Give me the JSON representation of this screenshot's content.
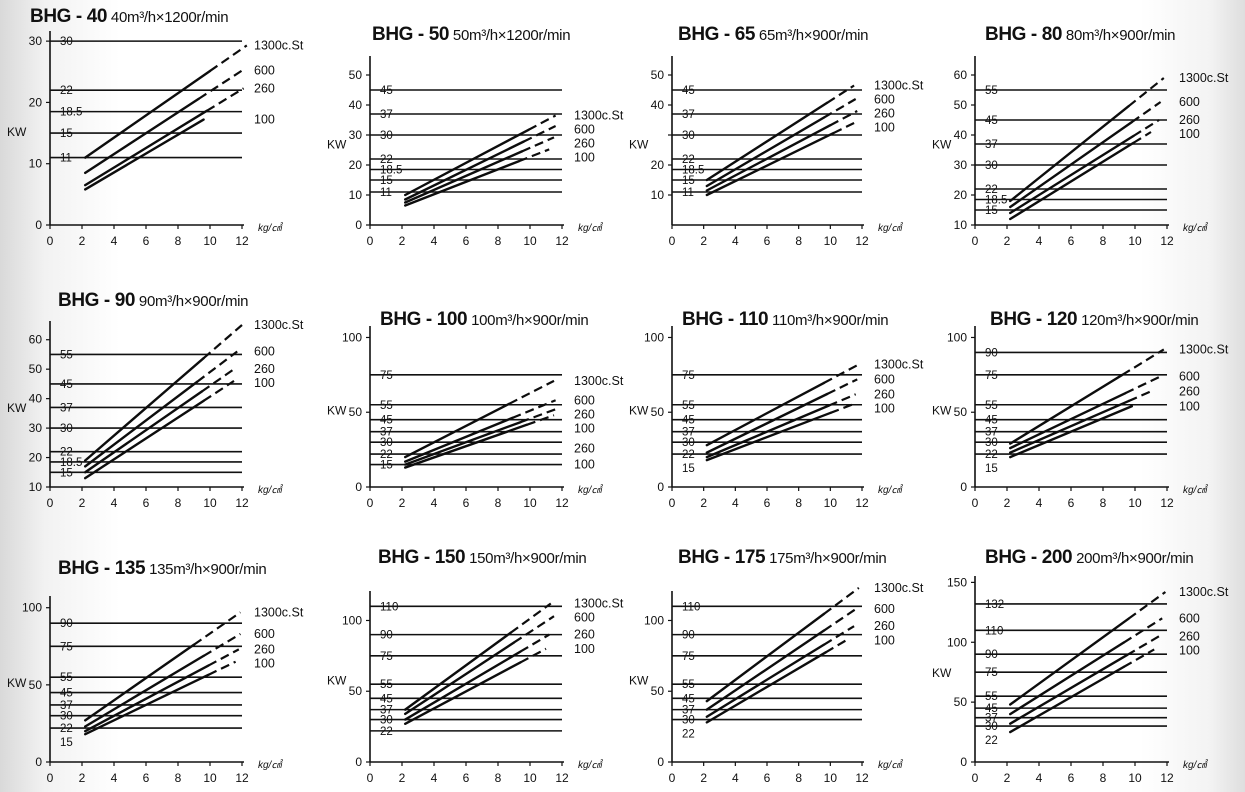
{
  "chart_data": [
    {
      "type": "line",
      "title": "BHG - 40",
      "subtitle": "40m³/h×1200r/min",
      "ylabel": "KW",
      "xlabel": "kg/㎠",
      "xlim": [
        0,
        12
      ],
      "ylim": [
        0,
        31
      ],
      "x_ticks": [
        0,
        2,
        4,
        6,
        8,
        10,
        12
      ],
      "y_ticks": [
        0,
        10,
        20,
        30
      ],
      "motor_ratings": [
        11,
        15,
        18.5,
        22,
        30
      ],
      "series": [
        {
          "name": "1300c.St",
          "x": [
            2.2,
            12.3
          ],
          "y": [
            11,
            29.3
          ],
          "dash_from": 10.0
        },
        {
          "name": "600",
          "x": [
            2.2,
            12.0
          ],
          "y": [
            8.5,
            25.2
          ],
          "dash_from": 9.3
        },
        {
          "name": "260",
          "x": [
            2.2,
            12.1
          ],
          "y": [
            6.5,
            22.3
          ],
          "dash_from": 9.8
        },
        {
          "name": "100",
          "x": [
            2.2,
            9.6
          ],
          "y": [
            5.8,
            17.2
          ],
          "dash_from": null
        }
      ]
    },
    {
      "type": "line",
      "title": "BHG - 50",
      "subtitle": "50m³/h×1200r/min",
      "ylabel": "KW",
      "xlabel": "kg/㎠",
      "xlim": [
        0,
        12
      ],
      "ylim": [
        0,
        55
      ],
      "x_ticks": [
        0,
        2,
        4,
        6,
        8,
        10,
        12
      ],
      "y_ticks": [
        0,
        10,
        20,
        30,
        40,
        50
      ],
      "motor_ratings": [
        11,
        15,
        18.5,
        22,
        30,
        37,
        45
      ],
      "series": [
        {
          "name": "1300c.St",
          "x": [
            2.2,
            11.6
          ],
          "y": [
            10,
            36.5
          ],
          "dash_from": 9.9
        },
        {
          "name": "600",
          "x": [
            2.2,
            11.6
          ],
          "y": [
            8.5,
            33
          ],
          "dash_from": 9.6
        },
        {
          "name": "260",
          "x": [
            2.2,
            11.5
          ],
          "y": [
            7.5,
            29.2
          ],
          "dash_from": 9.5
        },
        {
          "name": "100",
          "x": [
            2.2,
            11.2
          ],
          "y": [
            6.5,
            25.2
          ],
          "dash_from": 9.3
        }
      ]
    },
    {
      "type": "line",
      "title": "BHG - 65",
      "subtitle": "65m³/h×900r/min",
      "ylabel": "KW",
      "xlabel": "kg/㎠",
      "xlim": [
        0,
        12
      ],
      "ylim": [
        0,
        55
      ],
      "x_ticks": [
        0,
        2,
        4,
        6,
        8,
        10,
        12
      ],
      "y_ticks": [
        10,
        20,
        30,
        40,
        50
      ],
      "y_tick_labels": [
        "10",
        "20",
        "",
        "40",
        "50"
      ],
      "motor_ratings": [
        11,
        15,
        18.5,
        22,
        30,
        37,
        45
      ],
      "series": [
        {
          "name": "1300c.St",
          "x": [
            2.2,
            11.5
          ],
          "y": [
            15,
            46.5
          ],
          "dash_from": 9.8
        },
        {
          "name": "600",
          "x": [
            2.2,
            11.6
          ],
          "y": [
            13,
            42
          ],
          "dash_from": 9.6
        },
        {
          "name": "260",
          "x": [
            2.2,
            11.7
          ],
          "y": [
            11.5,
            38
          ],
          "dash_from": 10.0
        },
        {
          "name": "100",
          "x": [
            2.2,
            11.5
          ],
          "y": [
            10,
            34
          ],
          "dash_from": 10.2
        }
      ]
    },
    {
      "type": "line",
      "title": "BHG - 80",
      "subtitle": "80m³/h×900r/min",
      "ylabel": "KW",
      "xlabel": "kg/㎠",
      "xlim": [
        0,
        12
      ],
      "ylim": [
        10,
        65
      ],
      "x_ticks": [
        0,
        2,
        4,
        6,
        8,
        10,
        12
      ],
      "y_ticks": [
        10,
        20,
        30,
        40,
        50,
        60
      ],
      "motor_ratings": [
        15,
        18.5,
        22,
        30,
        37,
        45,
        55
      ],
      "series": [
        {
          "name": "1300c.St",
          "x": [
            2.2,
            11.8
          ],
          "y": [
            18,
            59
          ],
          "dash_from": 9.6
        },
        {
          "name": "600",
          "x": [
            2.2,
            11.6
          ],
          "y": [
            16,
            51
          ],
          "dash_from": 9.8
        },
        {
          "name": "260",
          "x": [
            2.2,
            11.5
          ],
          "y": [
            14,
            45
          ],
          "dash_from": 9.9
        },
        {
          "name": "100",
          "x": [
            2.2,
            11.0
          ],
          "y": [
            12,
            41
          ],
          "dash_from": 9.9
        }
      ]
    },
    {
      "type": "line",
      "title": "BHG - 90",
      "subtitle": "90m³/h×900r/min",
      "ylabel": "KW",
      "xlabel": "kg/㎠",
      "xlim": [
        0,
        12
      ],
      "ylim": [
        10,
        65
      ],
      "x_ticks": [
        0,
        2,
        4,
        6,
        8,
        10,
        12
      ],
      "y_ticks": [
        10,
        20,
        30,
        40,
        50,
        60
      ],
      "motor_ratings": [
        15,
        18.5,
        22,
        30,
        37,
        45,
        55
      ],
      "series": [
        {
          "name": "1300c.St",
          "x": [
            2.2,
            12.0
          ],
          "y": [
            19,
            65
          ],
          "dash_from": 9.6
        },
        {
          "name": "600",
          "x": [
            2.2,
            11.7
          ],
          "y": [
            17,
            56
          ],
          "dash_from": 9.2
        },
        {
          "name": "260",
          "x": [
            2.2,
            11.5
          ],
          "y": [
            15,
            50
          ],
          "dash_from": 9.5
        },
        {
          "name": "100",
          "x": [
            2.2,
            11.5
          ],
          "y": [
            13,
            46
          ],
          "dash_from": 9.6
        }
      ]
    },
    {
      "type": "line",
      "title": "BHG - 100",
      "subtitle": "100m³/h×900r/min",
      "ylabel": "KW",
      "xlabel": "kg/㎠",
      "xlim": [
        0,
        12
      ],
      "ylim": [
        0,
        105
      ],
      "x_ticks": [
        0,
        2,
        4,
        6,
        8,
        10,
        12
      ],
      "y_ticks": [
        0,
        50,
        100
      ],
      "motor_ratings": [
        15,
        22,
        30,
        37,
        45,
        55,
        75
      ],
      "series": [
        {
          "name": "1300c.St",
          "x": [
            2.2,
            11.5
          ],
          "y": [
            20,
            71
          ],
          "dash_from": 8.7
        },
        {
          "name": "600",
          "x": [
            2.2,
            11.6
          ],
          "y": [
            17,
            58
          ],
          "dash_from": 8.9
        },
        {
          "name": "260",
          "x": [
            2.2,
            11.6
          ],
          "y": [
            15,
            52
          ],
          "dash_from": 9.4
        },
        {
          "name": "100",
          "x": [
            2.2,
            11.5
          ],
          "y": [
            13,
            48
          ],
          "dash_from": 9.8
        }
      ],
      "extra_labels": [
        "260",
        "100"
      ]
    },
    {
      "type": "line",
      "title": "BHG - 110",
      "subtitle": "110m³/h×900r/min",
      "ylabel": "KW",
      "xlabel": "kg/㎠",
      "xlim": [
        0,
        12
      ],
      "ylim": [
        0,
        105
      ],
      "x_ticks": [
        0,
        2,
        4,
        6,
        8,
        10,
        12
      ],
      "y_ticks": [
        0,
        50,
        100
      ],
      "motor_ratings": [
        22,
        30,
        37,
        45,
        55,
        75
      ],
      "motor_labels_extra": [
        "15"
      ],
      "series": [
        {
          "name": "1300c.St",
          "x": [
            2.2,
            11.8
          ],
          "y": [
            28,
            82
          ],
          "dash_from": 9.6
        },
        {
          "name": "600",
          "x": [
            2.2,
            11.7
          ],
          "y": [
            23,
            72
          ],
          "dash_from": 9.8
        },
        {
          "name": "260",
          "x": [
            2.2,
            11.6
          ],
          "y": [
            20,
            62
          ],
          "dash_from": 9.9
        },
        {
          "name": "100",
          "x": [
            2.2,
            11.6
          ],
          "y": [
            18,
            56
          ],
          "dash_from": 10.0
        }
      ]
    },
    {
      "type": "line",
      "title": "BHG - 120",
      "subtitle": "120m³/h×900r/min",
      "ylabel": "KW",
      "xlabel": "kg/㎠",
      "xlim": [
        0,
        12
      ],
      "ylim": [
        0,
        105
      ],
      "x_ticks": [
        0,
        2,
        4,
        6,
        8,
        10,
        12
      ],
      "y_ticks": [
        0,
        50,
        100
      ],
      "motor_ratings": [
        22,
        30,
        37,
        45,
        55,
        75,
        90
      ],
      "motor_labels_extra": [
        "15"
      ],
      "series": [
        {
          "name": "1300c.St",
          "x": [
            2.2,
            11.8
          ],
          "y": [
            29,
            92
          ],
          "dash_from": 9.2
        },
        {
          "name": "600",
          "x": [
            2.2,
            11.6
          ],
          "y": [
            26,
            74
          ],
          "dash_from": 9.4
        },
        {
          "name": "260",
          "x": [
            2.2,
            11.0
          ],
          "y": [
            23,
            64
          ],
          "dash_from": 9.6
        },
        {
          "name": "100",
          "x": [
            2.2,
            9.8
          ],
          "y": [
            20,
            54
          ],
          "dash_from": null
        }
      ]
    },
    {
      "type": "line",
      "title": "BHG - 135",
      "subtitle": "135m³/h×900r/min",
      "ylabel": "KW",
      "xlabel": "kg/㎠",
      "xlim": [
        0,
        12
      ],
      "ylim": [
        0,
        105
      ],
      "x_ticks": [
        0,
        2,
        4,
        6,
        8,
        10,
        12
      ],
      "y_ticks": [
        0,
        50,
        100
      ],
      "motor_ratings": [
        22,
        30,
        37,
        45,
        55,
        75,
        90
      ],
      "motor_labels_extra": [
        "15"
      ],
      "series": [
        {
          "name": "1300c.St",
          "x": [
            2.2,
            11.9
          ],
          "y": [
            27,
            97
          ],
          "dash_from": 9.0
        },
        {
          "name": "600",
          "x": [
            2.2,
            11.9
          ],
          "y": [
            23,
            83
          ],
          "dash_from": 9.6
        },
        {
          "name": "260",
          "x": [
            2.2,
            11.8
          ],
          "y": [
            20,
            73
          ],
          "dash_from": 9.9
        },
        {
          "name": "100",
          "x": [
            2.2,
            11.6
          ],
          "y": [
            18,
            65
          ],
          "dash_from": 9.9
        }
      ]
    },
    {
      "type": "line",
      "title": "BHG - 150",
      "subtitle": "150m³/h×900r/min",
      "ylabel": "KW",
      "xlabel": "kg/㎠",
      "xlim": [
        0,
        12
      ],
      "ylim": [
        0,
        118
      ],
      "x_ticks": [
        0,
        2,
        4,
        6,
        8,
        10,
        12
      ],
      "y_ticks": [
        0,
        50,
        100
      ],
      "motor_ratings": [
        22,
        30,
        37,
        45,
        55,
        75,
        90,
        110
      ],
      "series": [
        {
          "name": "1300c.St",
          "x": [
            2.2,
            11.3
          ],
          "y": [
            37,
            112
          ],
          "dash_from": 8.8
        },
        {
          "name": "600",
          "x": [
            2.2,
            11.5
          ],
          "y": [
            34,
            103
          ],
          "dash_from": 9.0
        },
        {
          "name": "260",
          "x": [
            2.2,
            11.2
          ],
          "y": [
            30,
            90
          ],
          "dash_from": 9.4
        },
        {
          "name": "100",
          "x": [
            2.2,
            11.0
          ],
          "y": [
            27,
            80
          ],
          "dash_from": 9.4
        }
      ]
    },
    {
      "type": "line",
      "title": "BHG - 175",
      "subtitle": "175m³/h×900r/min",
      "ylabel": "KW",
      "xlabel": "kg/㎠",
      "xlim": [
        0,
        12
      ],
      "ylim": [
        0,
        118
      ],
      "x_ticks": [
        0,
        2,
        4,
        6,
        8,
        10,
        12
      ],
      "y_ticks": [
        0,
        50,
        100
      ],
      "motor_ratings": [
        30,
        37,
        45,
        55,
        75,
        90,
        110
      ],
      "motor_labels_extra": [
        "22"
      ],
      "series": [
        {
          "name": "1300c.St",
          "x": [
            2.2,
            11.8
          ],
          "y": [
            43,
            123
          ],
          "dash_from": 9.6
        },
        {
          "name": "600",
          "x": [
            2.2,
            11.6
          ],
          "y": [
            37,
            108
          ],
          "dash_from": 9.6
        },
        {
          "name": "260",
          "x": [
            2.2,
            11.5
          ],
          "y": [
            32,
            96
          ],
          "dash_from": 9.6
        },
        {
          "name": "100",
          "x": [
            2.2,
            11.0
          ],
          "y": [
            28,
            86
          ],
          "dash_from": 9.7
        }
      ]
    },
    {
      "type": "line",
      "title": "BHG - 200",
      "subtitle": "200m³/h×900r/min",
      "ylabel": "KW",
      "xlabel": "kg/㎠",
      "xlim": [
        0,
        12
      ],
      "ylim": [
        0,
        152
      ],
      "x_ticks": [
        0,
        2,
        4,
        6,
        8,
        10,
        12
      ],
      "y_ticks": [
        0,
        50,
        100,
        150
      ],
      "motor_ratings": [
        30,
        37,
        45,
        55,
        75,
        90,
        110,
        132
      ],
      "motor_labels_extra": [
        "22"
      ],
      "series": [
        {
          "name": "1300c.St",
          "x": [
            2.2,
            11.9
          ],
          "y": [
            48,
            142
          ],
          "dash_from": 9.6
        },
        {
          "name": "600",
          "x": [
            2.2,
            11.7
          ],
          "y": [
            40,
            120
          ],
          "dash_from": 9.3
        },
        {
          "name": "260",
          "x": [
            2.2,
            11.5
          ],
          "y": [
            32,
            105
          ],
          "dash_from": 9.5
        },
        {
          "name": "100",
          "x": [
            2.2,
            11.2
          ],
          "y": [
            25,
            94
          ],
          "dash_from": 9.3
        }
      ]
    }
  ]
}
